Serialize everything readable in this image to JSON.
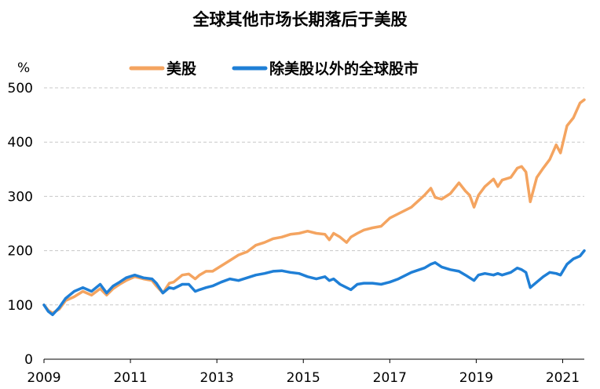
{
  "chart_data": {
    "type": "line",
    "title": "全球其他市场长期落后于美股",
    "ylabel": "%",
    "ylim": [
      0,
      500
    ],
    "yticks": [
      0,
      100,
      200,
      300,
      400,
      500
    ],
    "xlim": [
      2009,
      2021.5
    ],
    "xticks": [
      "2009",
      "2011",
      "2013",
      "2015",
      "2017",
      "2019",
      "2021"
    ],
    "grid": true,
    "legend": "top",
    "series": [
      {
        "name": "美股",
        "color": "#F4A460",
        "x": [
          2009.0,
          2009.1,
          2009.2,
          2009.35,
          2009.5,
          2009.7,
          2009.9,
          2010.1,
          2010.3,
          2010.45,
          2010.6,
          2010.75,
          2010.9,
          2011.1,
          2011.3,
          2011.5,
          2011.6,
          2011.75,
          2011.9,
          2012.0,
          2012.2,
          2012.35,
          2012.5,
          2012.6,
          2012.75,
          2012.9,
          2013.1,
          2013.3,
          2013.5,
          2013.7,
          2013.9,
          2014.1,
          2014.3,
          2014.5,
          2014.7,
          2014.9,
          2015.1,
          2015.3,
          2015.5,
          2015.6,
          2015.7,
          2015.85,
          2016.0,
          2016.1,
          2016.25,
          2016.4,
          2016.6,
          2016.8,
          2017.0,
          2017.2,
          2017.5,
          2017.8,
          2017.95,
          2018.05,
          2018.2,
          2018.4,
          2018.6,
          2018.75,
          2018.85,
          2018.95,
          2019.05,
          2019.2,
          2019.4,
          2019.5,
          2019.6,
          2019.8,
          2019.95,
          2020.05,
          2020.15,
          2020.25,
          2020.4,
          2020.55,
          2020.7,
          2020.85,
          2020.95,
          2021.1,
          2021.25,
          2021.4,
          2021.5
        ],
        "y": [
          100,
          90,
          85,
          92,
          108,
          115,
          125,
          118,
          130,
          118,
          130,
          138,
          145,
          152,
          148,
          145,
          135,
          122,
          140,
          142,
          155,
          157,
          148,
          155,
          162,
          162,
          172,
          182,
          192,
          198,
          210,
          215,
          222,
          225,
          230,
          232,
          236,
          232,
          230,
          220,
          232,
          225,
          215,
          225,
          232,
          238,
          242,
          245,
          260,
          268,
          280,
          302,
          315,
          298,
          295,
          305,
          325,
          310,
          302,
          280,
          302,
          318,
          332,
          318,
          330,
          335,
          352,
          355,
          345,
          290,
          335,
          352,
          368,
          395,
          380,
          430,
          445,
          472,
          478
        ]
      },
      {
        "name": "除美股以外的全球股市",
        "color": "#1F7FD6",
        "x": [
          2009.0,
          2009.1,
          2009.2,
          2009.35,
          2009.5,
          2009.7,
          2009.9,
          2010.1,
          2010.3,
          2010.45,
          2010.6,
          2010.75,
          2010.9,
          2011.1,
          2011.3,
          2011.5,
          2011.6,
          2011.75,
          2011.9,
          2012.0,
          2012.2,
          2012.35,
          2012.5,
          2012.6,
          2012.75,
          2012.9,
          2013.1,
          2013.3,
          2013.5,
          2013.7,
          2013.9,
          2014.1,
          2014.3,
          2014.5,
          2014.7,
          2014.9,
          2015.1,
          2015.3,
          2015.5,
          2015.6,
          2015.7,
          2015.85,
          2016.0,
          2016.1,
          2016.25,
          2016.4,
          2016.6,
          2016.8,
          2017.0,
          2017.2,
          2017.5,
          2017.8,
          2017.95,
          2018.05,
          2018.2,
          2018.4,
          2018.6,
          2018.75,
          2018.85,
          2018.95,
          2019.05,
          2019.2,
          2019.4,
          2019.5,
          2019.6,
          2019.8,
          2019.95,
          2020.05,
          2020.15,
          2020.25,
          2020.4,
          2020.55,
          2020.7,
          2020.85,
          2020.95,
          2021.1,
          2021.25,
          2021.4,
          2021.5
        ],
        "y": [
          100,
          88,
          82,
          95,
          112,
          125,
          132,
          125,
          138,
          122,
          135,
          142,
          150,
          155,
          150,
          148,
          140,
          122,
          132,
          130,
          138,
          138,
          125,
          128,
          132,
          135,
          142,
          148,
          145,
          150,
          155,
          158,
          162,
          163,
          160,
          158,
          152,
          148,
          152,
          145,
          148,
          138,
          132,
          128,
          138,
          140,
          140,
          138,
          142,
          148,
          160,
          168,
          175,
          178,
          170,
          165,
          162,
          155,
          150,
          145,
          155,
          158,
          155,
          158,
          155,
          160,
          168,
          165,
          160,
          132,
          142,
          152,
          160,
          158,
          155,
          175,
          185,
          190,
          200
        ]
      }
    ]
  }
}
